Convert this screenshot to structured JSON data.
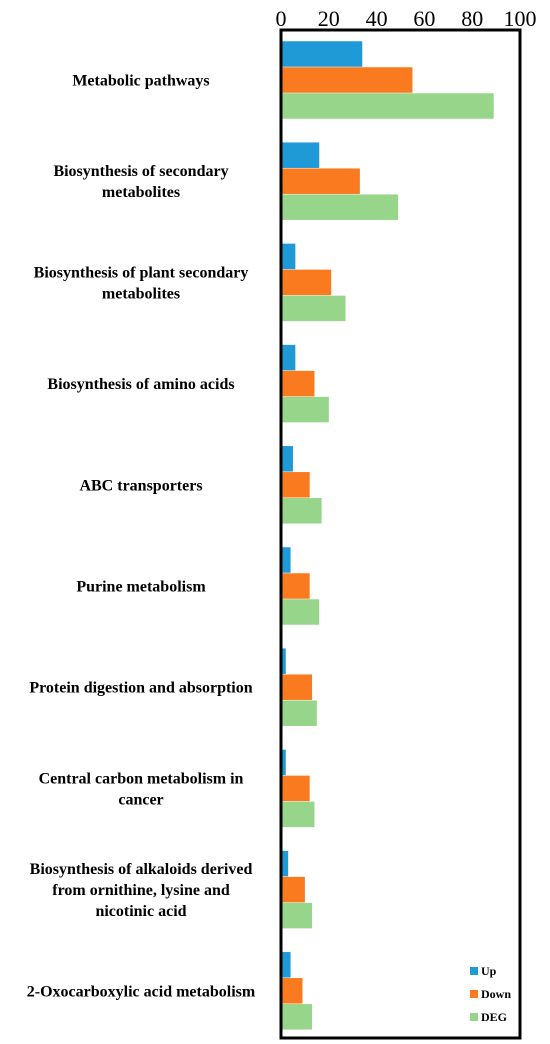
{
  "chart_data": {
    "type": "bar",
    "orientation": "horizontal",
    "x_axis_position": "top",
    "xlim": [
      0,
      100
    ],
    "x_ticks": [
      0,
      20,
      40,
      60,
      80,
      100
    ],
    "grid": false,
    "legend_position": "bottom-right",
    "categories": [
      [
        "Metabolic pathways"
      ],
      [
        "Biosynthesis of secondary",
        "metabolites"
      ],
      [
        "Biosynthesis of plant secondary",
        "metabolites"
      ],
      [
        "Biosynthesis of amino acids"
      ],
      [
        "ABC transporters"
      ],
      [
        "Purine metabolism"
      ],
      [
        "Protein digestion and absorption"
      ],
      [
        "Central carbon metabolism in",
        "cancer"
      ],
      [
        "Biosynthesis of alkaloids derived",
        "from ornithine, lysine and",
        "nicotinic acid"
      ],
      [
        "2-Oxocarboxylic acid metabolism"
      ]
    ],
    "series": [
      {
        "name": "Up",
        "color": "#1f9ad6",
        "values": [
          34,
          16,
          6,
          6,
          5,
          4,
          2,
          2,
          3,
          4
        ]
      },
      {
        "name": "Down",
        "color": "#f97a1f",
        "values": [
          55,
          33,
          21,
          14,
          12,
          12,
          13,
          12,
          10,
          9
        ]
      },
      {
        "name": "DEG",
        "color": "#96d58a",
        "values": [
          89,
          49,
          27,
          20,
          17,
          16,
          15,
          14,
          13,
          13
        ]
      }
    ]
  }
}
